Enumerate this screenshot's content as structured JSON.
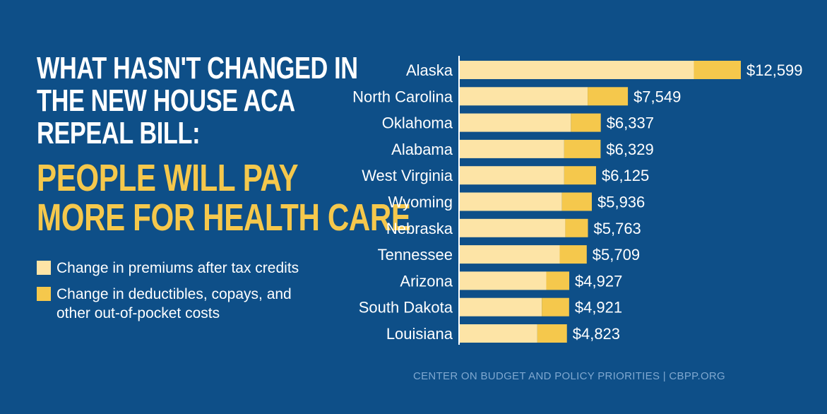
{
  "headline": {
    "line1": "WHAT HASN'T CHANGED IN",
    "line2": "THE NEW HOUSE ACA",
    "line3": "REPEAL BILL:",
    "emphasis1": "PEOPLE WILL PAY",
    "emphasis2": "MORE FOR HEALTH CARE"
  },
  "legend": {
    "premiums": "Change in premiums after tax credits",
    "deductibles": "Change in deductibles, copays, and other out-of-pocket costs"
  },
  "source": "CENTER ON BUDGET AND POLICY PRIORITIES | CBPP.ORG",
  "colors": {
    "background": "#0e4f88",
    "premiums": "#fde4a6",
    "deductibles": "#f5c84c",
    "axis": "#ffffff"
  },
  "chart_data": {
    "type": "bar",
    "orientation": "horizontal",
    "stacked": true,
    "categories": [
      "Alaska",
      "North Carolina",
      "Oklahoma",
      "Alabama",
      "West Virginia",
      "Wyoming",
      "Nebraska",
      "Tennessee",
      "Arizona",
      "South Dakota",
      "Louisiana"
    ],
    "series": [
      {
        "name": "Change in premiums after tax credits",
        "values": [
          10500,
          5750,
          5000,
          4700,
          4700,
          4600,
          4750,
          4500,
          3900,
          3700,
          3500
        ]
      },
      {
        "name": "Change in deductibles, copays, and other out-of-pocket costs",
        "values": [
          2099,
          1799,
          1337,
          1629,
          1425,
          1336,
          1013,
          1209,
          1027,
          1221,
          1323
        ]
      }
    ],
    "totals": [
      12599,
      7549,
      6337,
      6329,
      6125,
      5936,
      5763,
      5709,
      4927,
      4921,
      4823
    ],
    "total_labels": [
      "$12,599",
      "$7,549",
      "$6,337",
      "$6,329",
      "$6,125",
      "$5,936",
      "$5,763",
      "$5,709",
      "$4,927",
      "$4,921",
      "$4,823"
    ],
    "xlim": [
      0,
      12599
    ],
    "grid": false,
    "legend_position": "left"
  }
}
